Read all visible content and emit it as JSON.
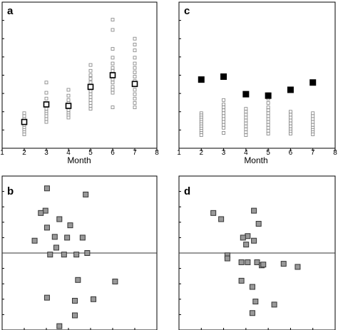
{
  "colors": {
    "frame": "#000000",
    "open_marker_stroke": "#8c8c8c",
    "mean_marker_fill": "#000000",
    "residual_marker_fill": "#999999",
    "residual_marker_stroke": "#333333",
    "zero_line": "#333333"
  },
  "chart_data": [
    {
      "panel": "a",
      "type": "scatter",
      "letter": "a",
      "xlabel": "Month",
      "ylabel": "",
      "title": "",
      "xlim": [
        1,
        8
      ],
      "ylim": [
        0,
        1
      ],
      "y_ticks": [
        0.125,
        0.25,
        0.375,
        0.5,
        0.625,
        0.75,
        0.875
      ],
      "y_tick_labels_visible": false,
      "x_ticks": [
        1,
        2,
        3,
        4,
        5,
        6,
        7,
        8
      ],
      "x_tick_labels": [
        "1",
        "2",
        "3",
        "4",
        "5",
        "6",
        "7",
        "8"
      ],
      "grid": false,
      "legend": "none",
      "series": [
        {
          "marker": "open-square",
          "points": [
            [
              2,
              0.24
            ],
            [
              2,
              0.22
            ],
            [
              2,
              0.2
            ],
            [
              2,
              0.185
            ],
            [
              2,
              0.17
            ],
            [
              2,
              0.155
            ],
            [
              2,
              0.14
            ],
            [
              2,
              0.125
            ],
            [
              2,
              0.11
            ],
            [
              2,
              0.095
            ],
            [
              3,
              0.45
            ],
            [
              3,
              0.38
            ],
            [
              3,
              0.34
            ],
            [
              3,
              0.31
            ],
            [
              3,
              0.29
            ],
            [
              3,
              0.27
            ],
            [
              3,
              0.25
            ],
            [
              3,
              0.235
            ],
            [
              3,
              0.22
            ],
            [
              3,
              0.2
            ],
            [
              3,
              0.18
            ],
            [
              4,
              0.4
            ],
            [
              4,
              0.36
            ],
            [
              4,
              0.33
            ],
            [
              4,
              0.31
            ],
            [
              4,
              0.29
            ],
            [
              4,
              0.27
            ],
            [
              4,
              0.26
            ],
            [
              4,
              0.24
            ],
            [
              4,
              0.225
            ],
            [
              4,
              0.21
            ],
            [
              5,
              0.57
            ],
            [
              5,
              0.53
            ],
            [
              5,
              0.5
            ],
            [
              5,
              0.475
            ],
            [
              5,
              0.45
            ],
            [
              5,
              0.43
            ],
            [
              5,
              0.41
            ],
            [
              5,
              0.39
            ],
            [
              5,
              0.37
            ],
            [
              5,
              0.35
            ],
            [
              5,
              0.33
            ],
            [
              5,
              0.31
            ],
            [
              5,
              0.29
            ],
            [
              5,
              0.27
            ],
            [
              6,
              0.88
            ],
            [
              6,
              0.81
            ],
            [
              6,
              0.68
            ],
            [
              6,
              0.62
            ],
            [
              6,
              0.58
            ],
            [
              6,
              0.55
            ],
            [
              6,
              0.53
            ],
            [
              6,
              0.5
            ],
            [
              6,
              0.47
            ],
            [
              6,
              0.45
            ],
            [
              6,
              0.42
            ],
            [
              6,
              0.4
            ],
            [
              6,
              0.38
            ],
            [
              6,
              0.28
            ],
            [
              7,
              0.75
            ],
            [
              7,
              0.71
            ],
            [
              7,
              0.67
            ],
            [
              7,
              0.62
            ],
            [
              7,
              0.58
            ],
            [
              7,
              0.55
            ],
            [
              7,
              0.52
            ],
            [
              7,
              0.49
            ],
            [
              7,
              0.46
            ],
            [
              7,
              0.43
            ],
            [
              7,
              0.4
            ],
            [
              7,
              0.37
            ],
            [
              7,
              0.34
            ],
            [
              7,
              0.31
            ],
            [
              7,
              0.28
            ]
          ]
        },
        {
          "marker": "open-square-bold",
          "points": [
            [
              2,
              0.18
            ],
            [
              3,
              0.3
            ],
            [
              4,
              0.29
            ],
            [
              5,
              0.42
            ],
            [
              6,
              0.5
            ],
            [
              7,
              0.44
            ]
          ]
        }
      ]
    },
    {
      "panel": "c",
      "type": "scatter",
      "letter": "c",
      "xlabel": "Month",
      "ylabel": "",
      "title": "",
      "xlim": [
        1,
        8
      ],
      "ylim": [
        0,
        1
      ],
      "y_ticks": [
        0.125,
        0.25,
        0.375,
        0.5,
        0.625,
        0.75,
        0.875
      ],
      "y_tick_labels_visible": false,
      "x_ticks": [
        1,
        2,
        3,
        4,
        5,
        6,
        7,
        8
      ],
      "x_tick_labels": [
        "1",
        "2",
        "3",
        "4",
        "5",
        "6",
        "7",
        "8"
      ],
      "grid": false,
      "legend": "none",
      "series": [
        {
          "marker": "open-square",
          "points": [
            [
              2,
              0.24
            ],
            [
              2,
              0.225
            ],
            [
              2,
              0.21
            ],
            [
              2,
              0.195
            ],
            [
              2,
              0.18
            ],
            [
              2,
              0.165
            ],
            [
              2,
              0.15
            ],
            [
              2,
              0.135
            ],
            [
              2,
              0.12
            ],
            [
              2,
              0.105
            ],
            [
              2,
              0.09
            ],
            [
              3,
              0.33
            ],
            [
              3,
              0.3
            ],
            [
              3,
              0.28
            ],
            [
              3,
              0.26
            ],
            [
              3,
              0.24
            ],
            [
              3,
              0.22
            ],
            [
              3,
              0.2
            ],
            [
              3,
              0.18
            ],
            [
              3,
              0.16
            ],
            [
              3,
              0.14
            ],
            [
              3,
              0.105
            ],
            [
              4,
              0.27
            ],
            [
              4,
              0.25
            ],
            [
              4,
              0.23
            ],
            [
              4,
              0.21
            ],
            [
              4,
              0.19
            ],
            [
              4,
              0.17
            ],
            [
              4,
              0.15
            ],
            [
              4,
              0.13
            ],
            [
              4,
              0.11
            ],
            [
              4,
              0.09
            ],
            [
              5,
              0.37
            ],
            [
              5,
              0.34
            ],
            [
              5,
              0.31
            ],
            [
              5,
              0.28
            ],
            [
              5,
              0.26
            ],
            [
              5,
              0.24
            ],
            [
              5,
              0.22
            ],
            [
              5,
              0.2
            ],
            [
              5,
              0.18
            ],
            [
              5,
              0.16
            ],
            [
              5,
              0.14
            ],
            [
              5,
              0.12
            ],
            [
              5,
              0.1
            ],
            [
              6,
              0.25
            ],
            [
              6,
              0.23
            ],
            [
              6,
              0.21
            ],
            [
              6,
              0.19
            ],
            [
              6,
              0.17
            ],
            [
              6,
              0.15
            ],
            [
              6,
              0.13
            ],
            [
              6,
              0.115
            ],
            [
              6,
              0.1
            ],
            [
              7,
              0.24
            ],
            [
              7,
              0.22
            ],
            [
              7,
              0.2
            ],
            [
              7,
              0.18
            ],
            [
              7,
              0.16
            ],
            [
              7,
              0.14
            ],
            [
              7,
              0.125
            ],
            [
              7,
              0.11
            ],
            [
              7,
              0.095
            ]
          ]
        },
        {
          "marker": "filled-square",
          "points": [
            [
              2,
              0.47
            ],
            [
              3,
              0.49
            ],
            [
              4,
              0.37
            ],
            [
              5,
              0.36
            ],
            [
              6,
              0.4
            ],
            [
              7,
              0.45
            ]
          ]
        }
      ]
    },
    {
      "panel": "b",
      "type": "scatter",
      "letter": "b",
      "xlabel": "",
      "ylabel": "",
      "title": "",
      "xlim": [
        0,
        1
      ],
      "ylim": [
        -1,
        1
      ],
      "zero_line": 0,
      "grid": false,
      "legend": "none",
      "series": [
        {
          "marker": "gray-square",
          "points": [
            [
              0.29,
              0.84
            ],
            [
              0.28,
              0.55
            ],
            [
              0.25,
              0.52
            ],
            [
              0.37,
              0.44
            ],
            [
              0.44,
              0.36
            ],
            [
              0.29,
              0.33
            ],
            [
              0.54,
              0.76
            ],
            [
              0.21,
              0.16
            ],
            [
              0.34,
              0.21
            ],
            [
              0.42,
              0.2
            ],
            [
              0.52,
              0.2
            ],
            [
              0.35,
              0.07
            ],
            [
              0.31,
              -0.02
            ],
            [
              0.4,
              -0.02
            ],
            [
              0.48,
              -0.02
            ],
            [
              0.55,
              0.0
            ],
            [
              0.49,
              -0.35
            ],
            [
              0.73,
              -0.37
            ],
            [
              0.29,
              -0.58
            ],
            [
              0.47,
              -0.62
            ],
            [
              0.59,
              -0.6
            ],
            [
              0.47,
              -0.81
            ],
            [
              0.37,
              -0.95
            ]
          ]
        }
      ]
    },
    {
      "panel": "d",
      "type": "scatter",
      "letter": "d",
      "xlabel": "",
      "ylabel": "",
      "title": "",
      "xlim": [
        0,
        1
      ],
      "ylim": [
        -1,
        1
      ],
      "zero_line": 0,
      "grid": false,
      "legend": "none",
      "series": [
        {
          "marker": "gray-square",
          "points": [
            [
              0.22,
              0.52
            ],
            [
              0.27,
              0.44
            ],
            [
              0.48,
              0.55
            ],
            [
              0.51,
              0.38
            ],
            [
              0.44,
              0.22
            ],
            [
              0.41,
              0.2
            ],
            [
              0.48,
              0.16
            ],
            [
              0.43,
              0.11
            ],
            [
              0.31,
              -0.03
            ],
            [
              0.31,
              -0.07
            ],
            [
              0.4,
              -0.12
            ],
            [
              0.44,
              -0.12
            ],
            [
              0.5,
              -0.12
            ],
            [
              0.53,
              -0.16
            ],
            [
              0.54,
              -0.15
            ],
            [
              0.67,
              -0.14
            ],
            [
              0.76,
              -0.18
            ],
            [
              0.4,
              -0.36
            ],
            [
              0.47,
              -0.44
            ],
            [
              0.49,
              -0.63
            ],
            [
              0.61,
              -0.67
            ],
            [
              0.47,
              -0.78
            ]
          ]
        }
      ]
    }
  ]
}
